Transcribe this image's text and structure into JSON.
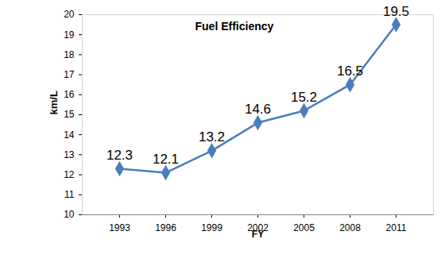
{
  "chart_data": {
    "type": "line",
    "title": "Fuel Efficiency",
    "xlabel": "FY",
    "ylabel": "km/L",
    "categories": [
      "1993",
      "1996",
      "1999",
      "2002",
      "2005",
      "2008",
      "2011"
    ],
    "values": [
      12.3,
      12.1,
      13.2,
      14.6,
      15.2,
      16.5,
      19.5
    ],
    "color": "#4a7ebb",
    "marker": "diamond",
    "ylim": [
      10,
      20
    ],
    "yticks": [
      10,
      11,
      12,
      13,
      14,
      15,
      16,
      17,
      18,
      19,
      20
    ],
    "grid": false,
    "data_labels": true
  }
}
